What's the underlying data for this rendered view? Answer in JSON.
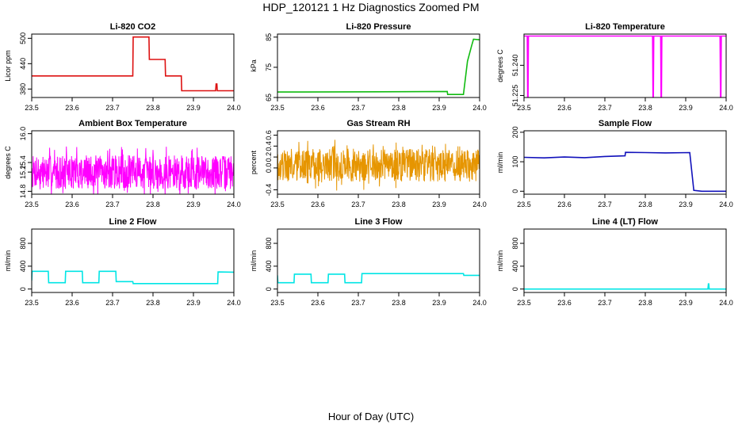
{
  "title": "HDP_120121  1 Hz Diagnostics Zoomed PM",
  "xlabel": "Hour of Day (UTC)",
  "chart_data": [
    {
      "type": "line",
      "title": "Li-820 CO2",
      "ylabel": "Licor ppm",
      "color": "#dd1111",
      "xlim": [
        23.5,
        24.0
      ],
      "ylim": [
        360,
        510
      ],
      "xticks": [
        23.5,
        23.6,
        23.7,
        23.8,
        23.9,
        24.0
      ],
      "yticks": [
        380,
        440,
        500
      ],
      "series": [
        {
          "x": [
            23.5,
            23.75,
            23.751,
            23.79,
            23.791,
            23.83,
            23.831,
            23.87,
            23.871,
            23.955,
            23.956,
            23.958,
            23.959,
            24.0
          ],
          "y": [
            411,
            411,
            503,
            503,
            450,
            450,
            411,
            411,
            376,
            376,
            392,
            392,
            376,
            376
          ]
        }
      ]
    },
    {
      "type": "line",
      "title": "Li-820 Pressure",
      "ylabel": "kPa",
      "color": "#11bb11",
      "xlim": [
        23.5,
        24.0
      ],
      "ylim": [
        65,
        86
      ],
      "xticks": [
        23.5,
        23.6,
        23.7,
        23.8,
        23.9,
        24.0
      ],
      "yticks": [
        65,
        75,
        85
      ],
      "series": [
        {
          "x": [
            23.5,
            23.75,
            23.92,
            23.921,
            23.96,
            23.97,
            23.98,
            23.985,
            24.0
          ],
          "y": [
            66.8,
            66.9,
            67.0,
            66.0,
            66.0,
            77.0,
            82.0,
            84.3,
            84.1
          ]
        }
      ]
    },
    {
      "type": "line",
      "title": "Li-820 Temperature",
      "ylabel": "degrees C",
      "color": "#ff00ff",
      "xlim": [
        23.5,
        24.0
      ],
      "ylim": [
        51.224,
        51.2555
      ],
      "xticks": [
        23.5,
        23.6,
        23.7,
        23.8,
        23.9,
        24.0
      ],
      "yticks": [
        51.225,
        51.24
      ],
      "ytick_labels": [
        "51.225",
        "51.240"
      ],
      "series": [
        {
          "x": [
            23.5,
            23.508,
            23.509,
            23.51,
            23.511,
            23.818,
            23.819,
            23.82,
            23.821,
            23.838,
            23.839,
            23.84,
            23.841,
            23.985,
            23.986,
            23.987,
            23.988,
            24.0
          ],
          "y": [
            51.2545,
            51.2545,
            51.2245,
            51.2245,
            51.2545,
            51.2545,
            51.2245,
            51.2245,
            51.2545,
            51.2545,
            51.2245,
            51.2245,
            51.2545,
            51.2545,
            51.2245,
            51.2245,
            51.2545,
            51.2545
          ]
        }
      ]
    },
    {
      "type": "line",
      "title": "Ambient Box Temperature",
      "ylabel": "degrees C",
      "color": "#ff00ff",
      "xlim": [
        23.5,
        24.0
      ],
      "ylim": [
        14.74,
        16.06
      ],
      "xticks": [
        23.5,
        23.6,
        23.7,
        23.8,
        23.9,
        24.0
      ],
      "yticks": [
        14.8,
        15.2,
        15.4,
        16.0
      ],
      "ytick_labels": [
        "14.8",
        "15.2",
        "15.4",
        "16.0"
      ],
      "noise": {
        "x0": 23.5,
        "x1": 24.0,
        "n": 700,
        "center": 15.2,
        "spread": 0.35,
        "seed": 7
      }
    },
    {
      "type": "line",
      "title": "Gas Stream RH",
      "ylabel": "percent",
      "color": "#e69500",
      "xlim": [
        23.5,
        24.0
      ],
      "ylim": [
        -0.48,
        0.68
      ],
      "xticks": [
        23.5,
        23.6,
        23.7,
        23.8,
        23.9,
        24.0
      ],
      "yticks": [
        -0.4,
        0.0,
        0.2,
        0.4,
        0.6
      ],
      "ytick_labels": [
        "-0.4",
        "0.0",
        "0.2",
        "0.4",
        "0.6"
      ],
      "noise": {
        "x0": 23.5,
        "x1": 24.0,
        "n": 700,
        "center": 0.05,
        "spread": 0.3,
        "seed": 19
      }
    },
    {
      "type": "line",
      "title": "Sample Flow",
      "ylabel": "ml/min",
      "color": "#1111bb",
      "xlim": [
        23.5,
        24.0
      ],
      "ylim": [
        -10,
        205
      ],
      "xticks": [
        23.5,
        23.6,
        23.7,
        23.8,
        23.9,
        24.0
      ],
      "yticks": [
        0,
        100,
        200
      ],
      "series": [
        {
          "x": [
            23.5,
            23.55,
            23.6,
            23.65,
            23.7,
            23.75,
            23.751,
            23.8,
            23.85,
            23.91,
            23.92,
            23.94,
            24.0
          ],
          "y": [
            115,
            113,
            116,
            114,
            118,
            120,
            132,
            131,
            130,
            131,
            3,
            0,
            0
          ]
        }
      ]
    },
    {
      "type": "line",
      "title": "Line 2 Flow",
      "ylabel": "ml/min",
      "color": "#00e5e5",
      "xlim": [
        23.5,
        24.0
      ],
      "ylim": [
        -60,
        1050
      ],
      "xticks": [
        23.5,
        23.6,
        23.7,
        23.8,
        23.9,
        24.0
      ],
      "yticks": [
        0,
        400,
        800
      ],
      "series": [
        {
          "x": [
            23.5,
            23.501,
            23.541,
            23.542,
            23.583,
            23.584,
            23.625,
            23.626,
            23.666,
            23.667,
            23.708,
            23.709,
            23.75,
            23.751,
            23.96,
            23.961,
            24.0
          ],
          "y": [
            150,
            310,
            310,
            110,
            110,
            310,
            310,
            110,
            110,
            310,
            310,
            130,
            130,
            95,
            95,
            300,
            295
          ]
        }
      ]
    },
    {
      "type": "line",
      "title": "Line 3 Flow",
      "ylabel": "ml/min",
      "color": "#00e5e5",
      "xlim": [
        23.5,
        24.0
      ],
      "ylim": [
        -60,
        1050
      ],
      "xticks": [
        23.5,
        23.6,
        23.7,
        23.8,
        23.9,
        24.0
      ],
      "yticks": [
        0,
        400,
        800
      ],
      "series": [
        {
          "x": [
            23.5,
            23.501,
            23.541,
            23.542,
            23.583,
            23.584,
            23.625,
            23.626,
            23.666,
            23.667,
            23.708,
            23.709,
            23.96,
            23.961,
            24.0
          ],
          "y": [
            240,
            110,
            110,
            260,
            260,
            110,
            110,
            260,
            260,
            110,
            110,
            270,
            270,
            240,
            240
          ]
        }
      ]
    },
    {
      "type": "line",
      "title": "Line 4 (LT) Flow",
      "ylabel": "ml/min",
      "color": "#00e5e5",
      "xlim": [
        23.5,
        24.0
      ],
      "ylim": [
        -60,
        1050
      ],
      "xticks": [
        23.5,
        23.6,
        23.7,
        23.8,
        23.9,
        24.0
      ],
      "yticks": [
        0,
        400,
        800
      ],
      "series": [
        {
          "x": [
            23.5,
            23.955,
            23.956,
            23.957,
            23.958,
            24.0
          ],
          "y": [
            0,
            0,
            90,
            90,
            0,
            0
          ]
        }
      ]
    }
  ]
}
